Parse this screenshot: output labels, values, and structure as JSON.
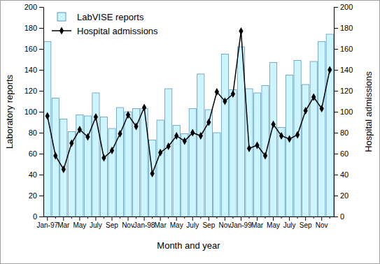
{
  "chart_data": {
    "type": "bar",
    "x_label": "Month and year",
    "y_label": "Laboratory reports",
    "y2_label": "Hospital admissions",
    "categories": [
      "Jan-97",
      null,
      "Mar",
      null,
      "May",
      null,
      "July",
      null,
      "Sep",
      null,
      "Nov",
      null,
      "Jan-98",
      null,
      "Mar",
      null,
      "May",
      null,
      "July",
      null,
      "Sep",
      null,
      "Nov",
      null,
      "Jan-99",
      null,
      "Mar",
      null,
      "May",
      null,
      "July",
      null,
      "Sep",
      null,
      "Nov",
      null
    ],
    "series": [
      {
        "name": "LabVISE reports",
        "type": "bar",
        "color": "#ccf5ff",
        "values": [
          167,
          113,
          93,
          81,
          97,
          96,
          118,
          95,
          84,
          104,
          100,
          103,
          103,
          73,
          92,
          122,
          87,
          79,
          103,
          136,
          102,
          80,
          155,
          121,
          162,
          122,
          118,
          125,
          147,
          85,
          135,
          149,
          126,
          148,
          167,
          174
        ]
      },
      {
        "name": "Hospital admissions",
        "type": "line",
        "color": "#000000",
        "marker": "diamond",
        "axis": "y2",
        "values": [
          96,
          58,
          45,
          70,
          83,
          76,
          95,
          56,
          63,
          79,
          97,
          86,
          104,
          41,
          61,
          67,
          77,
          72,
          80,
          77,
          90,
          119,
          110,
          117,
          177,
          65,
          68,
          58,
          88,
          77,
          74,
          78,
          101,
          114,
          103,
          140
        ]
      }
    ],
    "ylim": [
      0,
      200
    ],
    "yticks": [
      0,
      20,
      40,
      60,
      80,
      100,
      120,
      140,
      160,
      180,
      200
    ],
    "y2lim": [
      0,
      200
    ],
    "y2ticks": [
      0,
      20,
      40,
      60,
      80,
      100,
      120,
      140,
      160,
      180,
      200
    ],
    "legend": "upper left"
  }
}
